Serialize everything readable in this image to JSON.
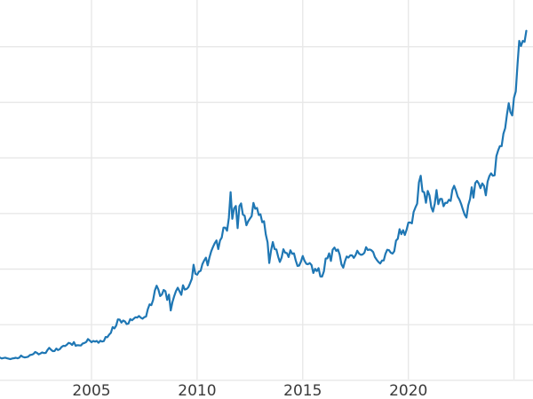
{
  "page": {
    "background_color": "#ffffff",
    "description_of_visible_content": "Cropped line chart, no title, no legend, y-axis tick labels cut off at left edge"
  },
  "chart_data": {
    "type": "line",
    "title": "",
    "xlabel": "",
    "ylabel": "",
    "legend": false,
    "grid": true,
    "line_color": "#1f77b4",
    "grid_color": "#e8e8e8",
    "tick_label_color": "#3a3a3a",
    "x_tick_labels": [
      "2005",
      "2010",
      "2015",
      "2020"
    ],
    "x_tick_years": [
      2005,
      2010,
      2015,
      2020
    ],
    "x_gridline_years": [
      2005,
      2010,
      2015,
      2020,
      2025
    ],
    "y_tick_labels_visible": false,
    "x_axis_range_years": [
      2000.67,
      2025.9
    ],
    "y_axis_range_estimated_usd": [
      50,
      3750
    ],
    "series_start_year": 2000.6667,
    "series_step_years": 0.083333,
    "values": [
      273,
      264,
      269,
      272,
      266,
      262,
      258,
      264,
      267,
      271,
      266,
      273,
      293,
      280,
      275,
      277,
      282,
      297,
      301,
      308,
      327,
      319,
      304,
      313,
      323,
      317,
      319,
      347,
      368,
      350,
      336,
      337,
      361,
      346,
      355,
      376,
      388,
      385,
      398,
      416,
      411,
      396,
      424,
      388,
      394,
      392,
      391,
      410,
      415,
      425,
      453,
      438,
      422,
      435,
      428,
      435,
      417,
      437,
      429,
      433,
      473,
      471,
      495,
      513,
      569,
      556,
      582,
      644,
      642,
      613,
      633,
      624,
      599,
      604,
      647,
      636,
      651,
      665,
      662,
      677,
      661,
      651,
      666,
      672,
      743,
      790,
      783,
      834,
      923,
      972,
      934,
      871,
      886,
      930,
      918,
      833,
      885,
      731,
      815,
      870,
      919,
      952,
      917,
      883,
      976,
      934,
      939,
      956,
      996,
      1040,
      1175,
      1088,
      1078,
      1108,
      1116,
      1180,
      1216,
      1244,
      1169,
      1246,
      1307,
      1346,
      1384,
      1411,
      1327,
      1411,
      1439,
      1536,
      1536,
      1506,
      1628,
      1880,
      1621,
      1723,
      1746,
      1531,
      1744,
      1771,
      1662,
      1651,
      1558,
      1598,
      1623,
      1648,
      1776,
      1719,
      1727,
      1658,
      1665,
      1588,
      1598,
      1469,
      1394,
      1192,
      1313,
      1395,
      1327,
      1324,
      1254,
      1202,
      1244,
      1326,
      1292,
      1288,
      1250,
      1315,
      1282,
      1286,
      1217,
      1164,
      1167,
      1206,
      1260,
      1214,
      1184,
      1180,
      1191,
      1171,
      1095,
      1135,
      1114,
      1142,
      1061,
      1060,
      1111,
      1235,
      1237,
      1286,
      1212,
      1321,
      1342,
      1309,
      1323,
      1272,
      1178,
      1146,
      1211,
      1255,
      1245,
      1266,
      1266,
      1242,
      1267,
      1311,
      1283,
      1271,
      1275,
      1291,
      1345,
      1318,
      1323,
      1315,
      1298,
      1250,
      1224,
      1202,
      1187,
      1215,
      1217,
      1281,
      1320,
      1316,
      1292,
      1283,
      1306,
      1409,
      1428,
      1520,
      1472,
      1511,
      1464,
      1515,
      1584,
      1586,
      1577,
      1687,
      1730,
      1768,
      1976,
      2040,
      1886,
      1879,
      1777,
      1892,
      1848,
      1734,
      1692,
      1768,
      1900,
      1763,
      1814,
      1815,
      1743,
      1777,
      1775,
      1806,
      1795,
      1901,
      1942,
      1897,
      1837,
      1807,
      1766,
      1711,
      1661,
      1633,
      1753,
      1812,
      1928,
      1827,
      1969,
      1990,
      1963,
      1919,
      1965,
      1940,
      1849,
      1983,
      2036,
      2063,
      2040,
      2044,
      2230,
      2286,
      2327,
      2327,
      2448,
      2503,
      2635,
      2744,
      2657,
      2625,
      2798,
      2858,
      3124,
      3350,
      3300,
      3350,
      3340,
      3448
    ]
  }
}
